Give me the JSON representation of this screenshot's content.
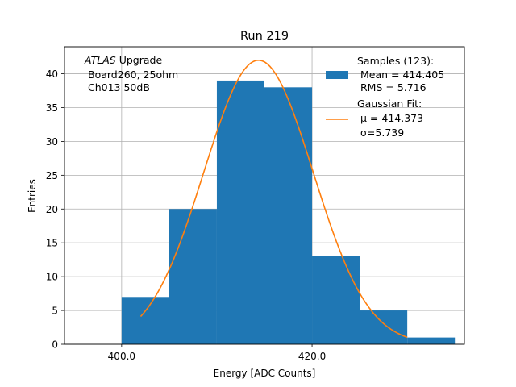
{
  "chart_data": {
    "type": "bar",
    "title": "Run 219",
    "xlabel": "Energy [ADC Counts]",
    "ylabel": "Entries",
    "xlim": [
      394,
      436
    ],
    "ylim": [
      0,
      44
    ],
    "xticks": [
      400,
      420
    ],
    "xtick_labels": [
      "400.0",
      "420.0"
    ],
    "yticks": [
      0,
      5,
      10,
      15,
      20,
      25,
      30,
      35,
      40
    ],
    "grid": true,
    "bin_edges": [
      400,
      405,
      410,
      415,
      420,
      425,
      430,
      435
    ],
    "values": [
      7,
      20,
      39,
      38,
      13,
      5,
      1
    ],
    "histogram_color": "#1f77b4",
    "fit": {
      "name": "Gaussian Fit",
      "color": "#ff7f0e",
      "amplitude": 42,
      "mu": 414.373,
      "sigma": 5.739,
      "x_range": [
        402,
        430
      ]
    },
    "annotation": {
      "lines": [
        "ATLAS Upgrade",
        "Board260, 25ohm",
        "Ch013 50dB"
      ],
      "italic_word": "ATLAS"
    },
    "legend": {
      "placement": "top-right",
      "samples": {
        "label": "Samples (123):",
        "mean": "Mean = 414.405",
        "rms": "RMS = 5.716"
      },
      "fit": {
        "label": "Gaussian Fit:",
        "mu": "μ = 414.373",
        "sigma": "σ=5.739"
      }
    }
  }
}
